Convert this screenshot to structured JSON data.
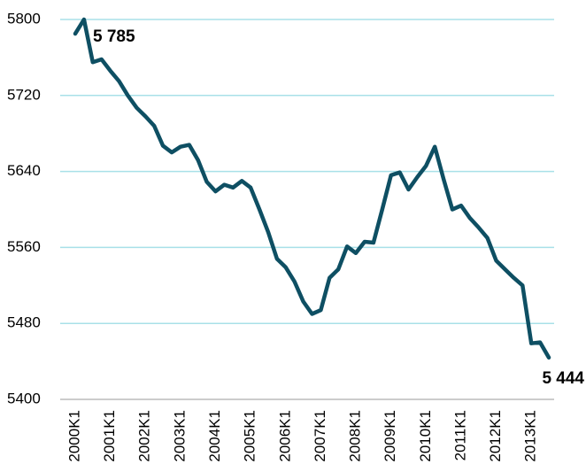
{
  "chart_data": {
    "type": "line",
    "categories": [
      "2000K1",
      null,
      null,
      null,
      "2001K1",
      null,
      null,
      null,
      "2002K1",
      null,
      null,
      null,
      "2003K1",
      null,
      null,
      null,
      "2004K1",
      null,
      null,
      null,
      "2005K1",
      null,
      null,
      null,
      "2006K1",
      null,
      null,
      null,
      "2007K1",
      null,
      null,
      null,
      "2008K1",
      null,
      null,
      null,
      "2009K1",
      null,
      null,
      null,
      "2010K1",
      null,
      null,
      null,
      "2011K1",
      null,
      null,
      null,
      "2012K1",
      null,
      null,
      null,
      "2013K1",
      null,
      null
    ],
    "values": [
      5785,
      5800,
      5755,
      5758,
      5746,
      5735,
      5720,
      5707,
      5698,
      5688,
      5667,
      5660,
      5666,
      5668,
      5652,
      5629,
      5619,
      5626,
      5623,
      5630,
      5623,
      5600,
      5576,
      5548,
      5539,
      5524,
      5503,
      5490,
      5494,
      5528,
      5537,
      5561,
      5554,
      5566,
      5565,
      5600,
      5636,
      5639,
      5621,
      5634,
      5646,
      5666,
      5632,
      5600,
      5604,
      5591,
      5581,
      5570,
      5546,
      5537,
      5528,
      5520,
      5459,
      5460,
      5444
    ],
    "value_labels": [
      "5 785",
      null,
      null,
      null,
      null,
      null,
      null,
      null,
      null,
      null,
      null,
      null,
      null,
      null,
      null,
      null,
      null,
      null,
      null,
      null,
      null,
      null,
      null,
      null,
      null,
      null,
      null,
      null,
      null,
      null,
      null,
      null,
      null,
      null,
      null,
      null,
      null,
      null,
      null,
      null,
      null,
      null,
      null,
      null,
      null,
      null,
      null,
      null,
      null,
      null,
      null,
      null,
      null,
      null,
      "5 444"
    ],
    "color": "#0e4f63",
    "ylim": [
      5400,
      5800
    ],
    "yticks": [
      5400,
      5480,
      5560,
      5640,
      5720,
      5800
    ],
    "grid": true
  }
}
